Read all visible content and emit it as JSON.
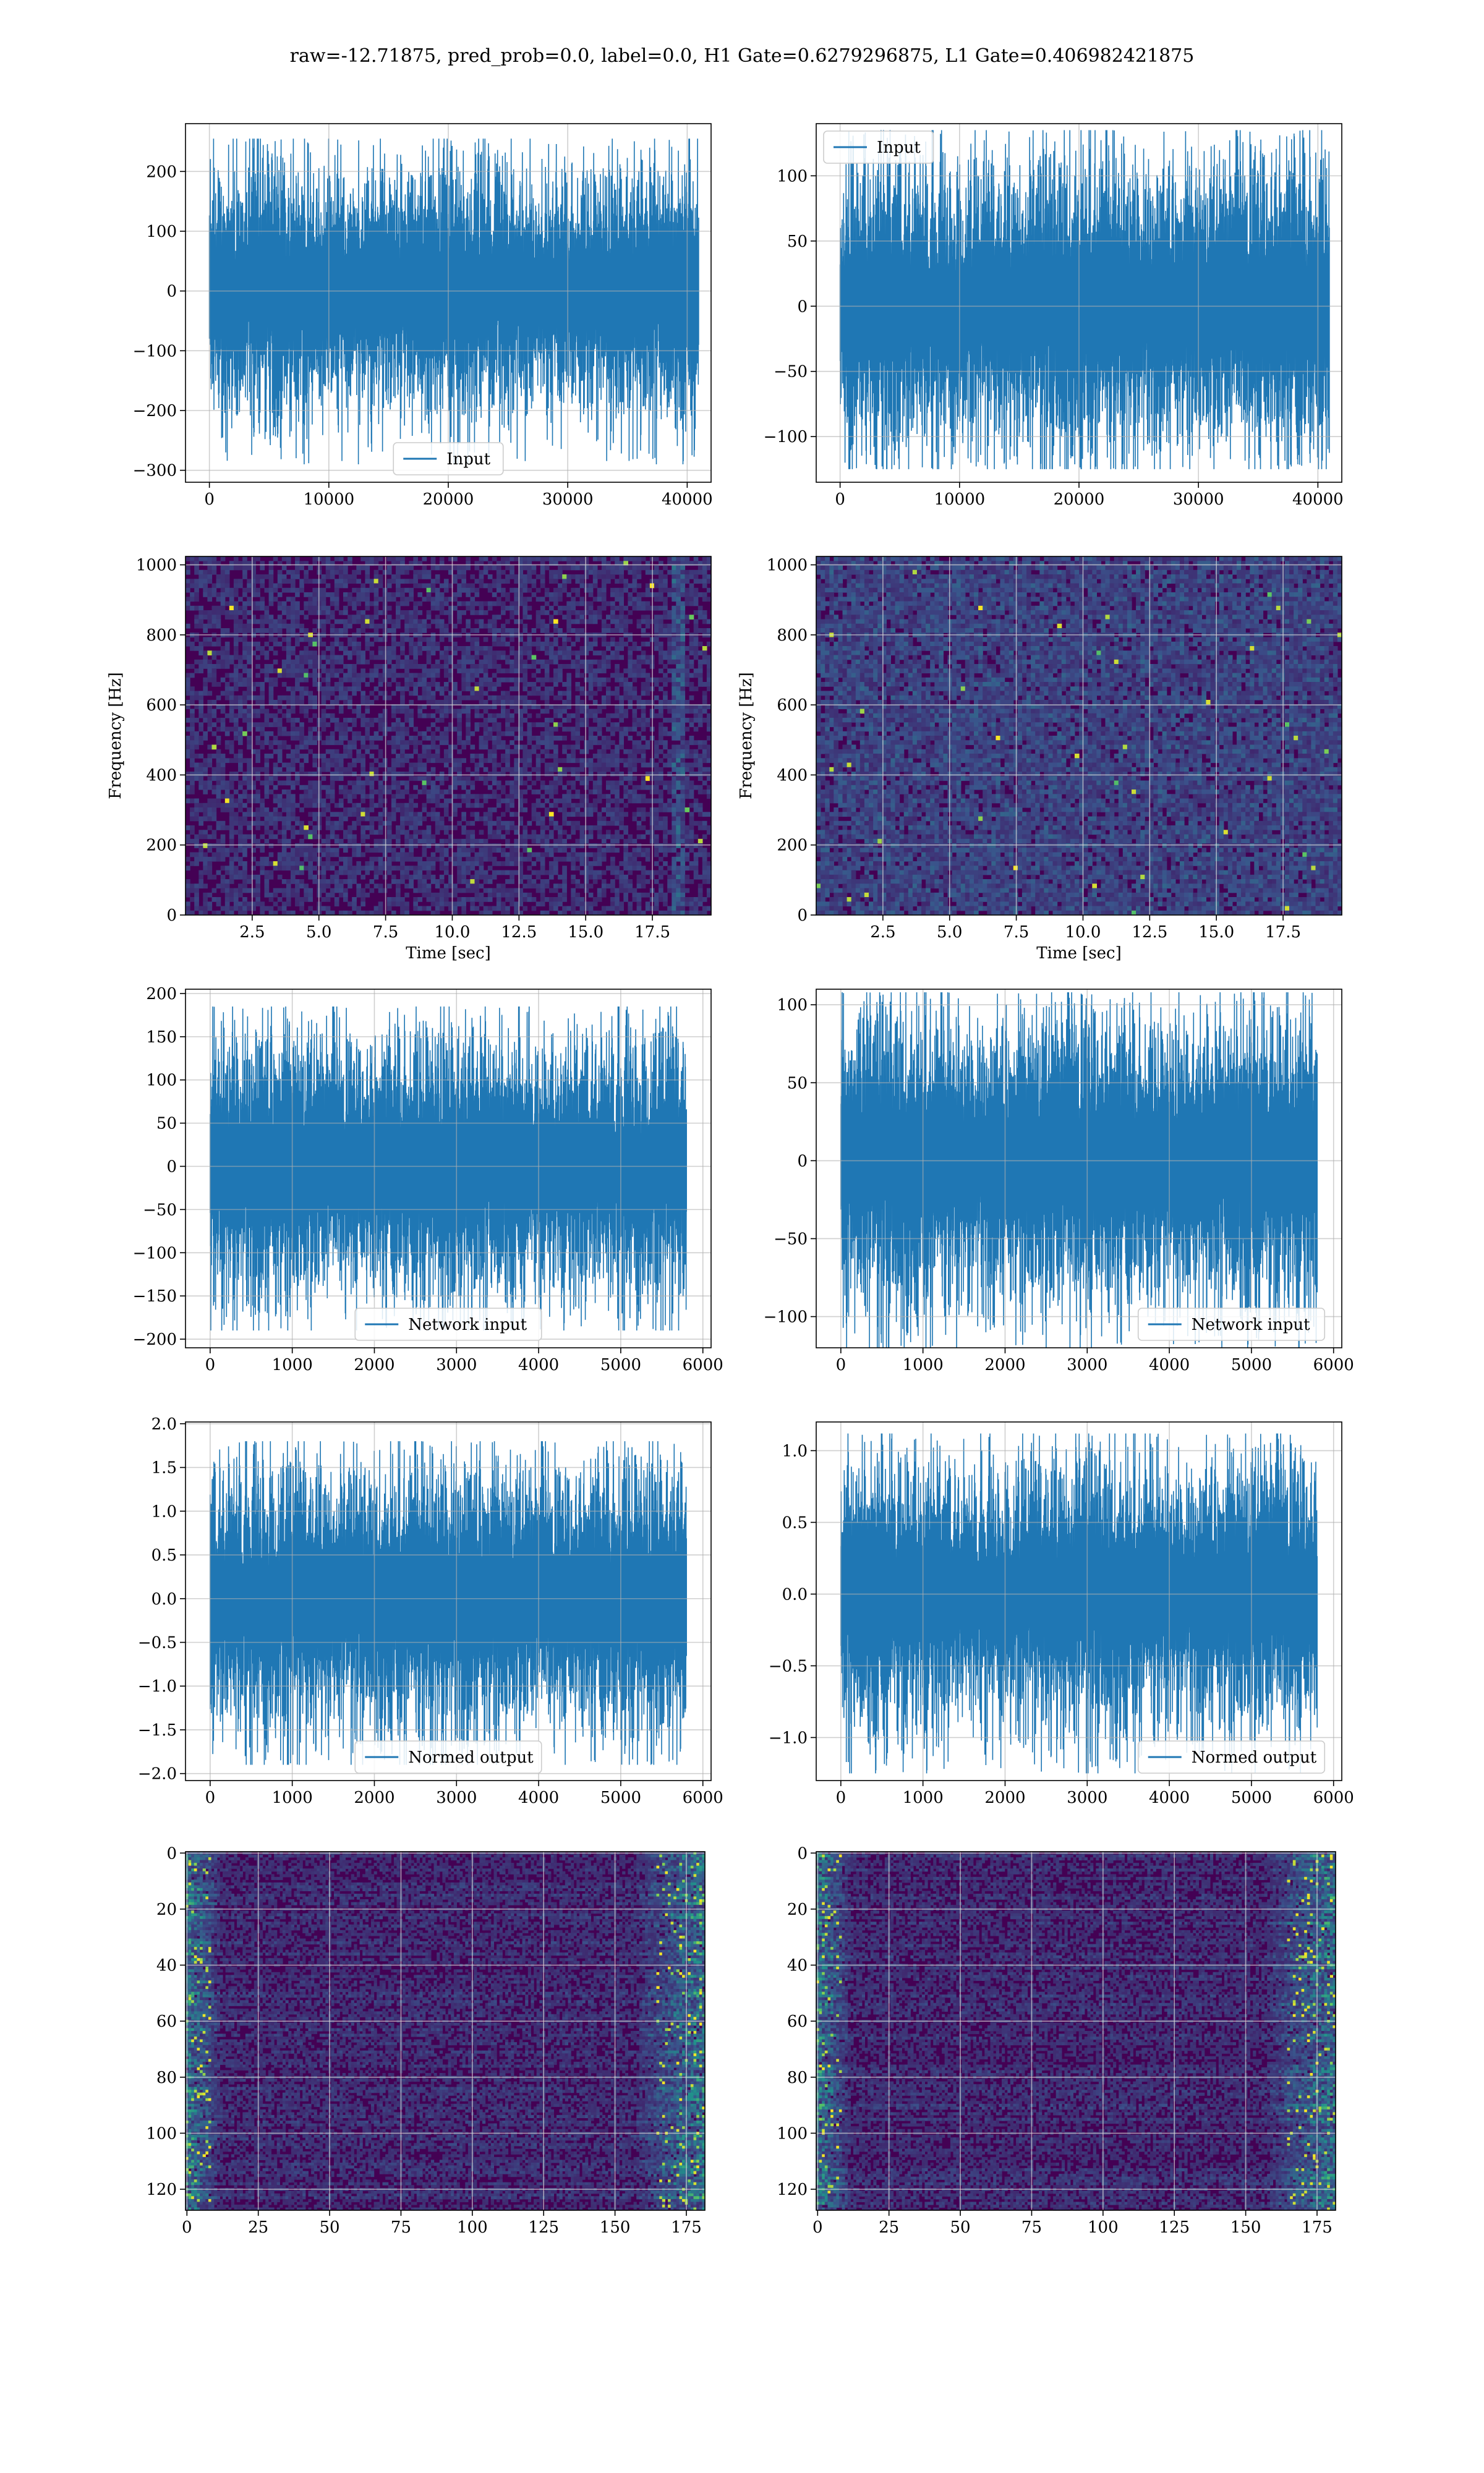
{
  "suptitle": "raw=-12.71875, pred_prob=0.0, label=0.0, H1 Gate=0.6279296875, L1 Gate=0.406982421875",
  "colors": {
    "line": "#1f77b4",
    "grid": "#b0b0b0",
    "viridis_low": "#440154",
    "viridis_mid": "#21918c",
    "viridis_high": "#fde725"
  },
  "chart_data": [
    {
      "id": "h1_input",
      "type": "line",
      "legend": "Input",
      "legend_loc": "lower-center",
      "xlim": [
        -2000,
        42000
      ],
      "ylim": [
        -320,
        280
      ],
      "xticks": [
        0,
        10000,
        20000,
        30000,
        40000
      ],
      "yticks": [
        -300,
        -200,
        -100,
        0,
        100,
        200
      ],
      "n_samples": 40960,
      "amplitude": 100,
      "peak": 255,
      "min": -290,
      "xlabel": "",
      "ylabel": "",
      "grid": true
    },
    {
      "id": "l1_input",
      "type": "line",
      "legend": "Input",
      "legend_loc": "upper-left",
      "xlim": [
        -2000,
        42000
      ],
      "ylim": [
        -135,
        140
      ],
      "xticks": [
        0,
        10000,
        20000,
        30000,
        40000
      ],
      "yticks": [
        -100,
        -50,
        0,
        50,
        100
      ],
      "n_samples": 40960,
      "amplitude": 55,
      "peak": 135,
      "min": -125,
      "xlabel": "",
      "ylabel": "",
      "grid": true
    },
    {
      "id": "h1_spectrogram",
      "type": "heatmap",
      "xlim": [
        0,
        19.7
      ],
      "ylim": [
        0,
        1024
      ],
      "xticks": [
        2.5,
        5.0,
        7.5,
        10.0,
        12.5,
        15.0,
        17.5
      ],
      "yticks": [
        0,
        200,
        400,
        600,
        800,
        1000
      ],
      "xlabel": "Time [sec]",
      "ylabel": "Frequency [Hz]",
      "colormap": "viridis",
      "grid": true
    },
    {
      "id": "l1_spectrogram",
      "type": "heatmap",
      "xlim": [
        0,
        19.7
      ],
      "ylim": [
        0,
        1024
      ],
      "xticks": [
        2.5,
        5.0,
        7.5,
        10.0,
        12.5,
        15.0,
        17.5
      ],
      "yticks": [
        0,
        200,
        400,
        600,
        800,
        1000
      ],
      "xlabel": "Time [sec]",
      "ylabel": "Frequency [Hz]",
      "colormap": "viridis",
      "grid": true
    },
    {
      "id": "h1_network_input",
      "type": "line",
      "legend": "Network input",
      "legend_loc": "lower-center",
      "xlim": [
        -300,
        6100
      ],
      "ylim": [
        -210,
        205
      ],
      "xticks": [
        0,
        1000,
        2000,
        3000,
        4000,
        5000,
        6000
      ],
      "yticks": [
        -200,
        -150,
        -100,
        -50,
        0,
        50,
        100,
        150,
        200
      ],
      "n_samples": 5800,
      "amplitude": 75,
      "peak": 185,
      "min": -190,
      "xlabel": "",
      "ylabel": "",
      "grid": true
    },
    {
      "id": "l1_network_input",
      "type": "line",
      "legend": "Network input",
      "legend_loc": "lower-right",
      "xlim": [
        -300,
        6100
      ],
      "ylim": [
        -120,
        110
      ],
      "xticks": [
        0,
        1000,
        2000,
        3000,
        4000,
        5000,
        6000
      ],
      "yticks": [
        -100,
        -50,
        0,
        50,
        100
      ],
      "n_samples": 5800,
      "amplitude": 45,
      "peak": 108,
      "min": -120,
      "xlabel": "",
      "ylabel": "",
      "grid": true
    },
    {
      "id": "h1_normed_output",
      "type": "line",
      "legend": "Normed output",
      "legend_loc": "lower-center",
      "xlim": [
        -300,
        6100
      ],
      "ylim": [
        -2.08,
        2.02
      ],
      "xticks": [
        0,
        1000,
        2000,
        3000,
        4000,
        5000,
        6000
      ],
      "yticks": [
        -2.0,
        -1.5,
        -1.0,
        -0.5,
        0.0,
        0.5,
        1.0,
        1.5,
        2.0
      ],
      "n_samples": 5800,
      "amplitude": 0.75,
      "peak": 1.8,
      "min": -1.9,
      "xlabel": "",
      "ylabel": "",
      "grid": true
    },
    {
      "id": "l1_normed_output",
      "type": "line",
      "legend": "Normed output",
      "legend_loc": "lower-right",
      "xlim": [
        -300,
        6100
      ],
      "ylim": [
        -1.3,
        1.2
      ],
      "xticks": [
        0,
        1000,
        2000,
        3000,
        4000,
        5000,
        6000
      ],
      "yticks": [
        -1.0,
        -0.5,
        0.0,
        0.5,
        1.0
      ],
      "n_samples": 5800,
      "amplitude": 0.45,
      "peak": 1.12,
      "min": -1.25,
      "xlabel": "",
      "ylabel": "",
      "grid": true
    },
    {
      "id": "h1_feature_map",
      "type": "heatmap",
      "xlim": [
        -0.5,
        181.5
      ],
      "ylim": [
        127.5,
        -0.5
      ],
      "xticks": [
        0,
        25,
        50,
        75,
        100,
        125,
        150,
        175
      ],
      "yticks": [
        0,
        20,
        40,
        60,
        80,
        100,
        120
      ],
      "rows": 128,
      "cols": 182,
      "colormap": "viridis",
      "xlabel": "",
      "ylabel": "",
      "grid": true
    },
    {
      "id": "l1_feature_map",
      "type": "heatmap",
      "xlim": [
        -0.5,
        181.5
      ],
      "ylim": [
        127.5,
        -0.5
      ],
      "xticks": [
        0,
        25,
        50,
        75,
        100,
        125,
        150,
        175
      ],
      "yticks": [
        0,
        20,
        40,
        60,
        80,
        100,
        120
      ],
      "rows": 128,
      "cols": 182,
      "colormap": "viridis",
      "xlabel": "",
      "ylabel": "",
      "grid": true
    }
  ]
}
